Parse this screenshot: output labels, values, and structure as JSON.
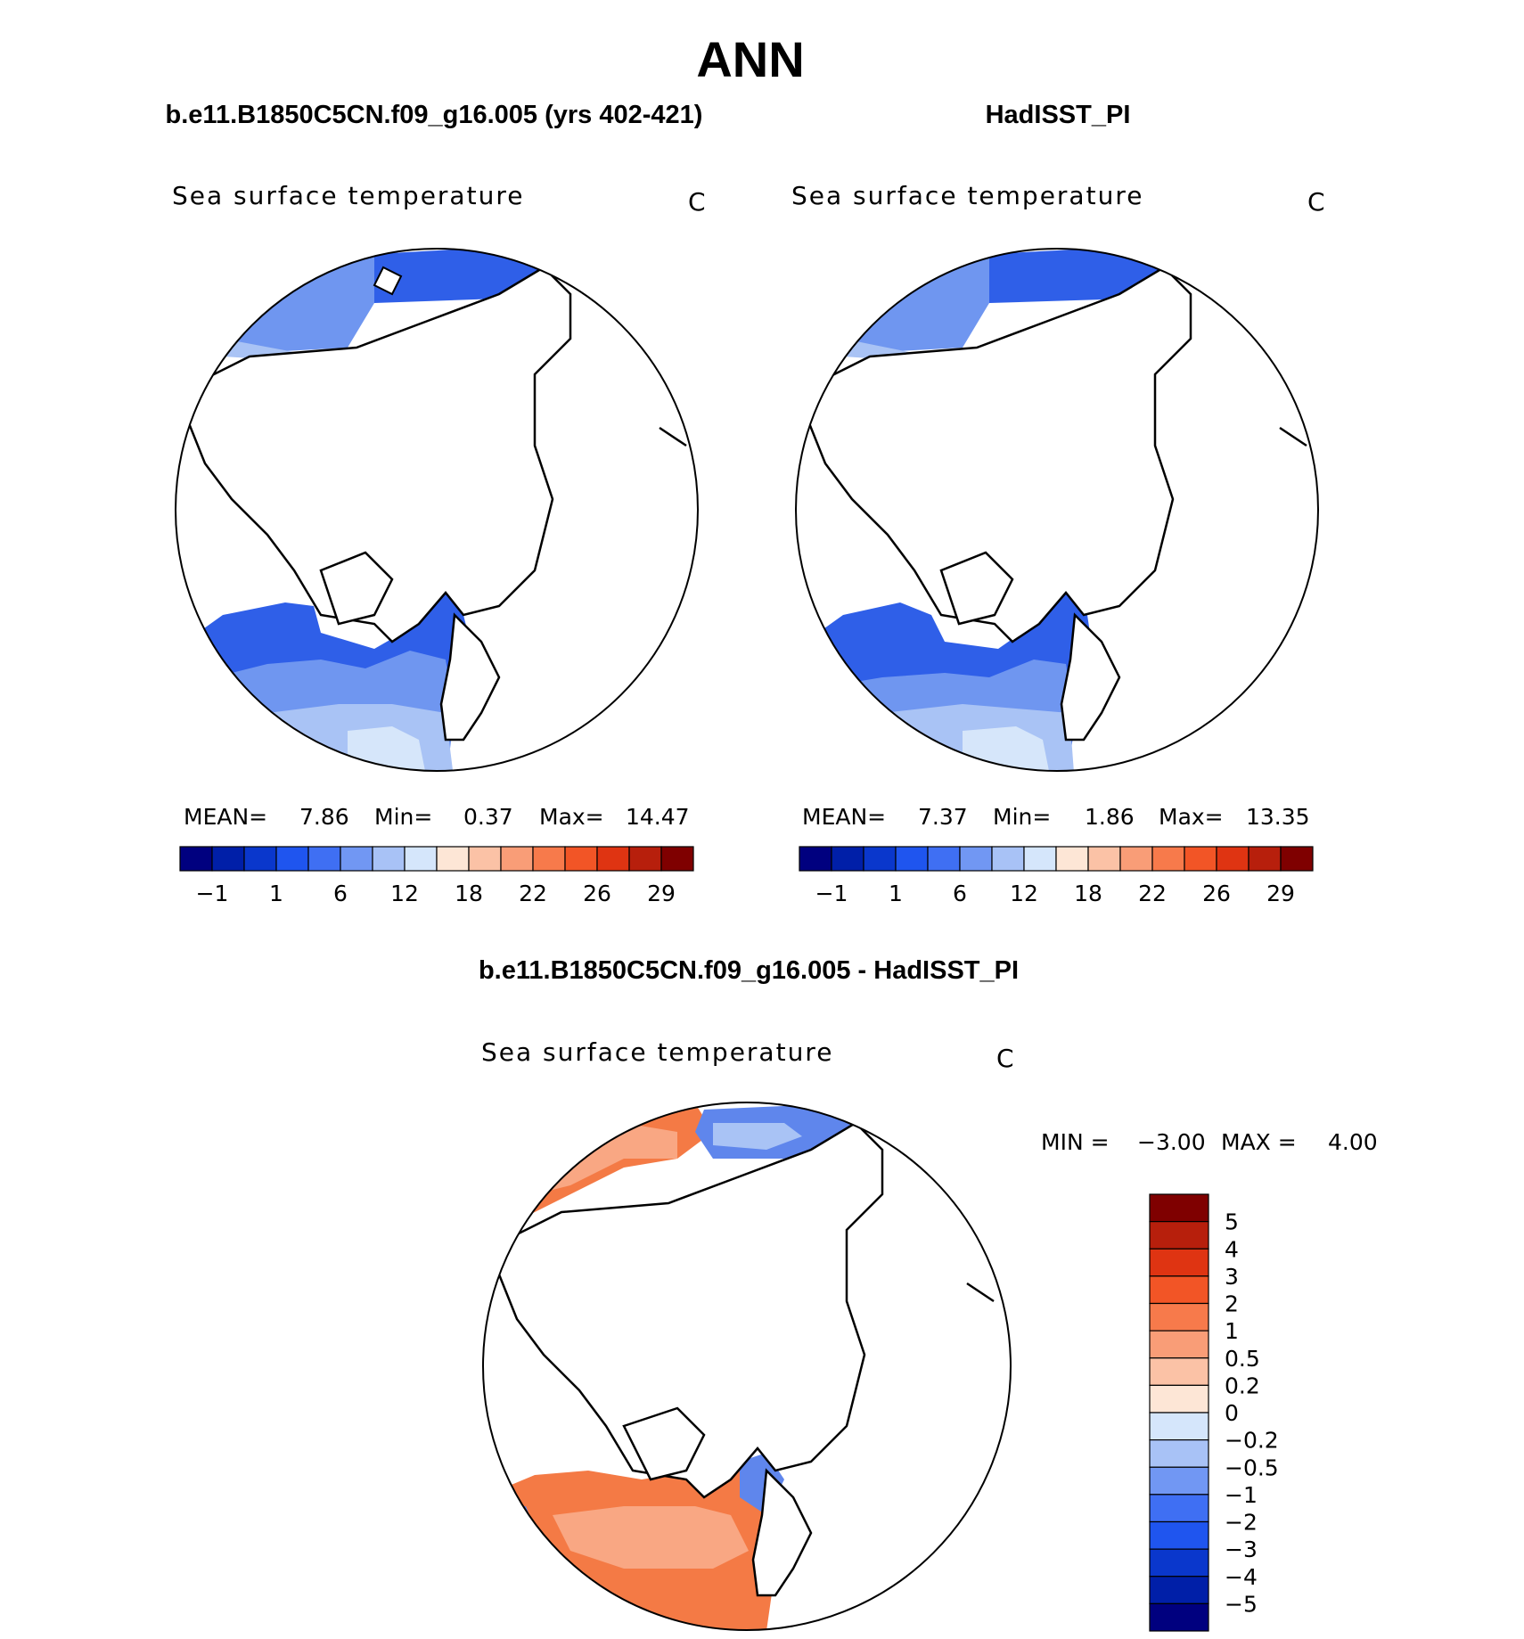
{
  "page_title": "ANN",
  "colors": {
    "ocean_blue_dark": "#2f5fe8",
    "ocean_blue_mid": "#6f96f0",
    "ocean_blue_light": "#a9c3f5",
    "ocean_blue_pale": "#d6e6fa",
    "land": "#ffffff",
    "diff_orange": "#f47a45",
    "diff_orange_light": "#f9a783",
    "diff_blue": "#5f86ec"
  },
  "panel_left": {
    "title": "b.e11.B1850C5CN.f09_g16.005 (yrs 402-421)",
    "plot_label": "Sea surface temperature",
    "units": "C",
    "stats": {
      "mean_label": "MEAN=",
      "mean": "7.86",
      "min_label": "Min=",
      "min": "0.37",
      "max_label": "Max=",
      "max": "14.47"
    }
  },
  "panel_right": {
    "title": "HadISST_PI",
    "plot_label": "Sea surface temperature",
    "units": "C",
    "stats": {
      "mean_label": "MEAN=",
      "mean": "7.37",
      "min_label": "Min=",
      "min": "1.86",
      "max_label": "Max=",
      "max": "13.35"
    }
  },
  "panel_diff": {
    "title": "b.e11.B1850C5CN.f09_g16.005 - HadISST_PI",
    "plot_label": "Sea surface temperature",
    "units": "C",
    "stats": {
      "min_label": "MIN =",
      "min": "−3.00",
      "max_label": "MAX =",
      "max": "4.00"
    }
  },
  "chart_data": [
    {
      "type": "heatmap",
      "projection": "north polar stereographic",
      "title": "b.e11.B1850C5CN.f09_g16.005 (yrs 402-421)",
      "variable": "Sea surface temperature",
      "units": "C",
      "mean": 7.86,
      "min": 0.37,
      "max": 14.47,
      "colorbar_levels": [
        -1,
        1,
        6,
        12,
        18,
        22,
        26,
        29
      ],
      "colorbar_colors": [
        "#00007f",
        "#001fa8",
        "#0a37cc",
        "#1f55ef",
        "#3f6ff3",
        "#7197f3",
        "#a8c2f6",
        "#d5e6fb",
        "#fde6d6",
        "#fbc2a6",
        "#f99d77",
        "#f77a4b",
        "#f25526",
        "#df3412",
        "#b71f0c",
        "#7f0000"
      ]
    },
    {
      "type": "heatmap",
      "projection": "north polar stereographic",
      "title": "HadISST_PI",
      "variable": "Sea surface temperature",
      "units": "C",
      "mean": 7.37,
      "min": 1.86,
      "max": 13.35,
      "colorbar_levels": [
        -1,
        1,
        6,
        12,
        18,
        22,
        26,
        29
      ],
      "colorbar_colors": [
        "#00007f",
        "#001fa8",
        "#0a37cc",
        "#1f55ef",
        "#3f6ff3",
        "#7197f3",
        "#a8c2f6",
        "#d5e6fb",
        "#fde6d6",
        "#fbc2a6",
        "#f99d77",
        "#f77a4b",
        "#f25526",
        "#df3412",
        "#b71f0c",
        "#7f0000"
      ]
    },
    {
      "type": "heatmap",
      "projection": "north polar stereographic",
      "title": "b.e11.B1850C5CN.f09_g16.005 - HadISST_PI",
      "variable": "Sea surface temperature",
      "units": "C",
      "min": -3.0,
      "max": 4.0,
      "colorbar_levels": [
        "5",
        "4",
        "3",
        "2",
        "1",
        "0.5",
        "0.2",
        "0",
        "−0.2",
        "−0.5",
        "−1",
        "−2",
        "−3",
        "−4",
        "−5"
      ],
      "colorbar_colors": [
        "#7f0000",
        "#b71f0c",
        "#df3412",
        "#f25526",
        "#f77a4b",
        "#f99d77",
        "#fbc2a6",
        "#fde6d6",
        "#d5e6fb",
        "#a8c2f6",
        "#7197f3",
        "#3f6ff3",
        "#1f55ef",
        "#0a37cc",
        "#001fa8",
        "#00007f"
      ]
    }
  ]
}
